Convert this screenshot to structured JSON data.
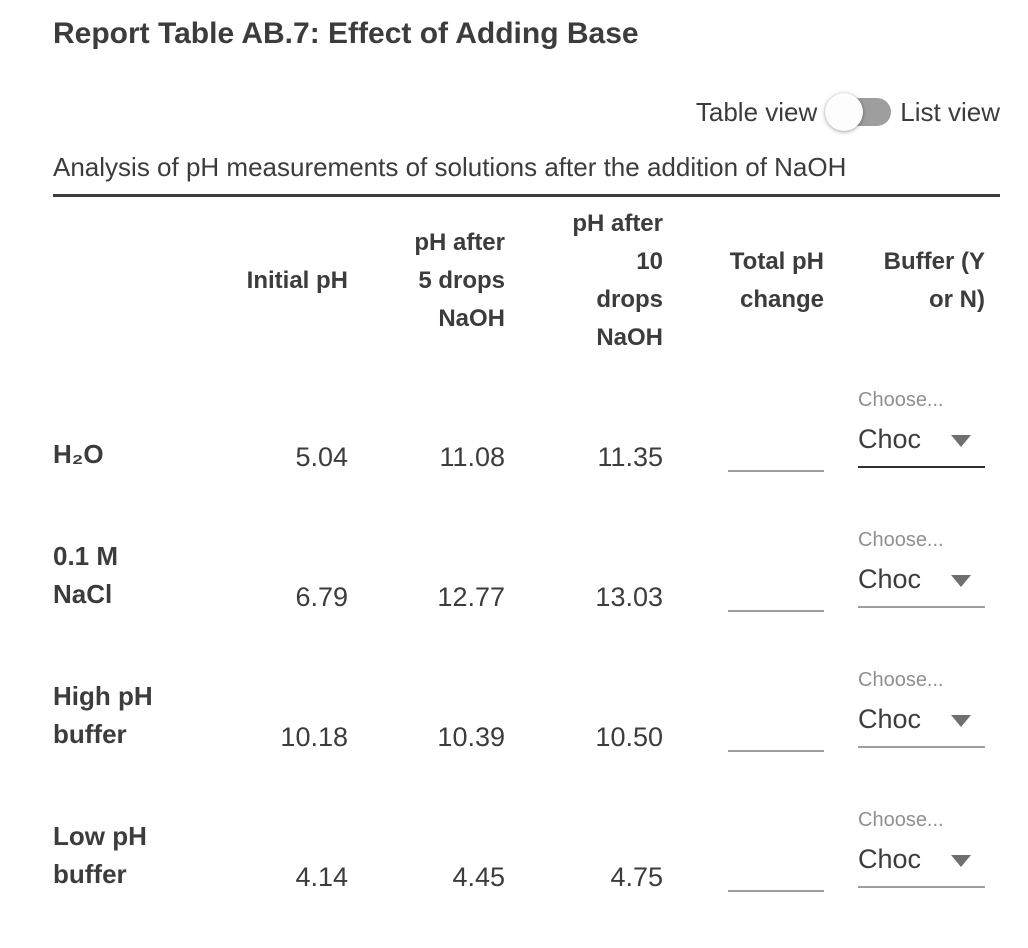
{
  "header": {
    "title": "Report Table AB.7: Effect of Adding Base"
  },
  "view_toggle": {
    "left_label": "Table view",
    "right_label": "List view",
    "selected": "Table view"
  },
  "description": "Analysis of pH measurements of solutions after the addition of NaOH",
  "table": {
    "column_headers": [
      "",
      "Initial pH",
      "pH after 5 drops NaOH",
      "pH after 10 drops NaOH",
      "Total pH change",
      "Buffer (Y or N)"
    ],
    "rows": [
      {
        "label": "H₂O",
        "initial_ph": "5.04",
        "ph_after_5_drops": "11.08",
        "ph_after_10_drops": "11.35",
        "total_ph_change": "",
        "buffer_label": "Choose...",
        "buffer_value_display": "Choc"
      },
      {
        "label": "0.1 M NaCl",
        "initial_ph": "6.79",
        "ph_after_5_drops": "12.77",
        "ph_after_10_drops": "13.03",
        "total_ph_change": "",
        "buffer_label": "Choose...",
        "buffer_value_display": "Choc"
      },
      {
        "label": "High pH buffer",
        "initial_ph": "10.18",
        "ph_after_5_drops": "10.39",
        "ph_after_10_drops": "10.50",
        "total_ph_change": "",
        "buffer_label": "Choose...",
        "buffer_value_display": "Choc"
      },
      {
        "label": "Low pH buffer",
        "initial_ph": "4.14",
        "ph_after_5_drops": "4.45",
        "ph_after_10_drops": "4.75",
        "total_ph_change": "",
        "buffer_label": "Choose...",
        "buffer_value_display": "Choc"
      }
    ]
  },
  "colors": {
    "text": "#3c3c3c",
    "muted_label": "#909090",
    "underline": "#9e9e9e",
    "underline_active": "#303030",
    "toggle_track": "#9e9e9e",
    "toggle_thumb": "#fdfdfd",
    "background": "#ffffff"
  }
}
